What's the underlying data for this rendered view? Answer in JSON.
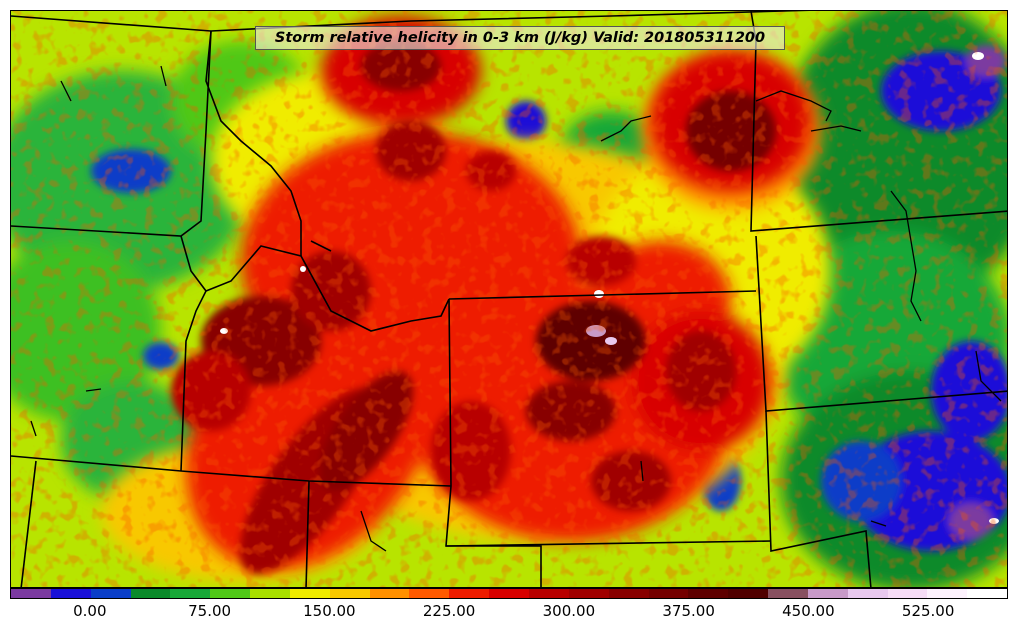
{
  "title": "Storm relative helicity in 0-3 km (J/kg) Valid: 201805311200",
  "colorbar": {
    "min": -50,
    "max": 575,
    "step": 25,
    "colors": [
      "#7b3aa0",
      "#1a10d8",
      "#0a3ec8",
      "#0a8a2a",
      "#18a838",
      "#50c818",
      "#a8e000",
      "#f0ec00",
      "#f8c800",
      "#ff9000",
      "#ff5a00",
      "#ee1c00",
      "#d80000",
      "#b80000",
      "#a00000",
      "#880000",
      "#740000",
      "#5e0000",
      "#500000",
      "#885060",
      "#c89ac8",
      "#e8c8ee",
      "#f6dcf6",
      "#fdf2fd",
      "#ffffff"
    ],
    "tick_labels": [
      "0.00",
      "75.00",
      "150.00",
      "225.00",
      "300.00",
      "375.00",
      "450.00",
      "525.00"
    ],
    "tick_values": [
      0,
      75,
      150,
      225,
      300,
      375,
      450,
      525
    ]
  }
}
